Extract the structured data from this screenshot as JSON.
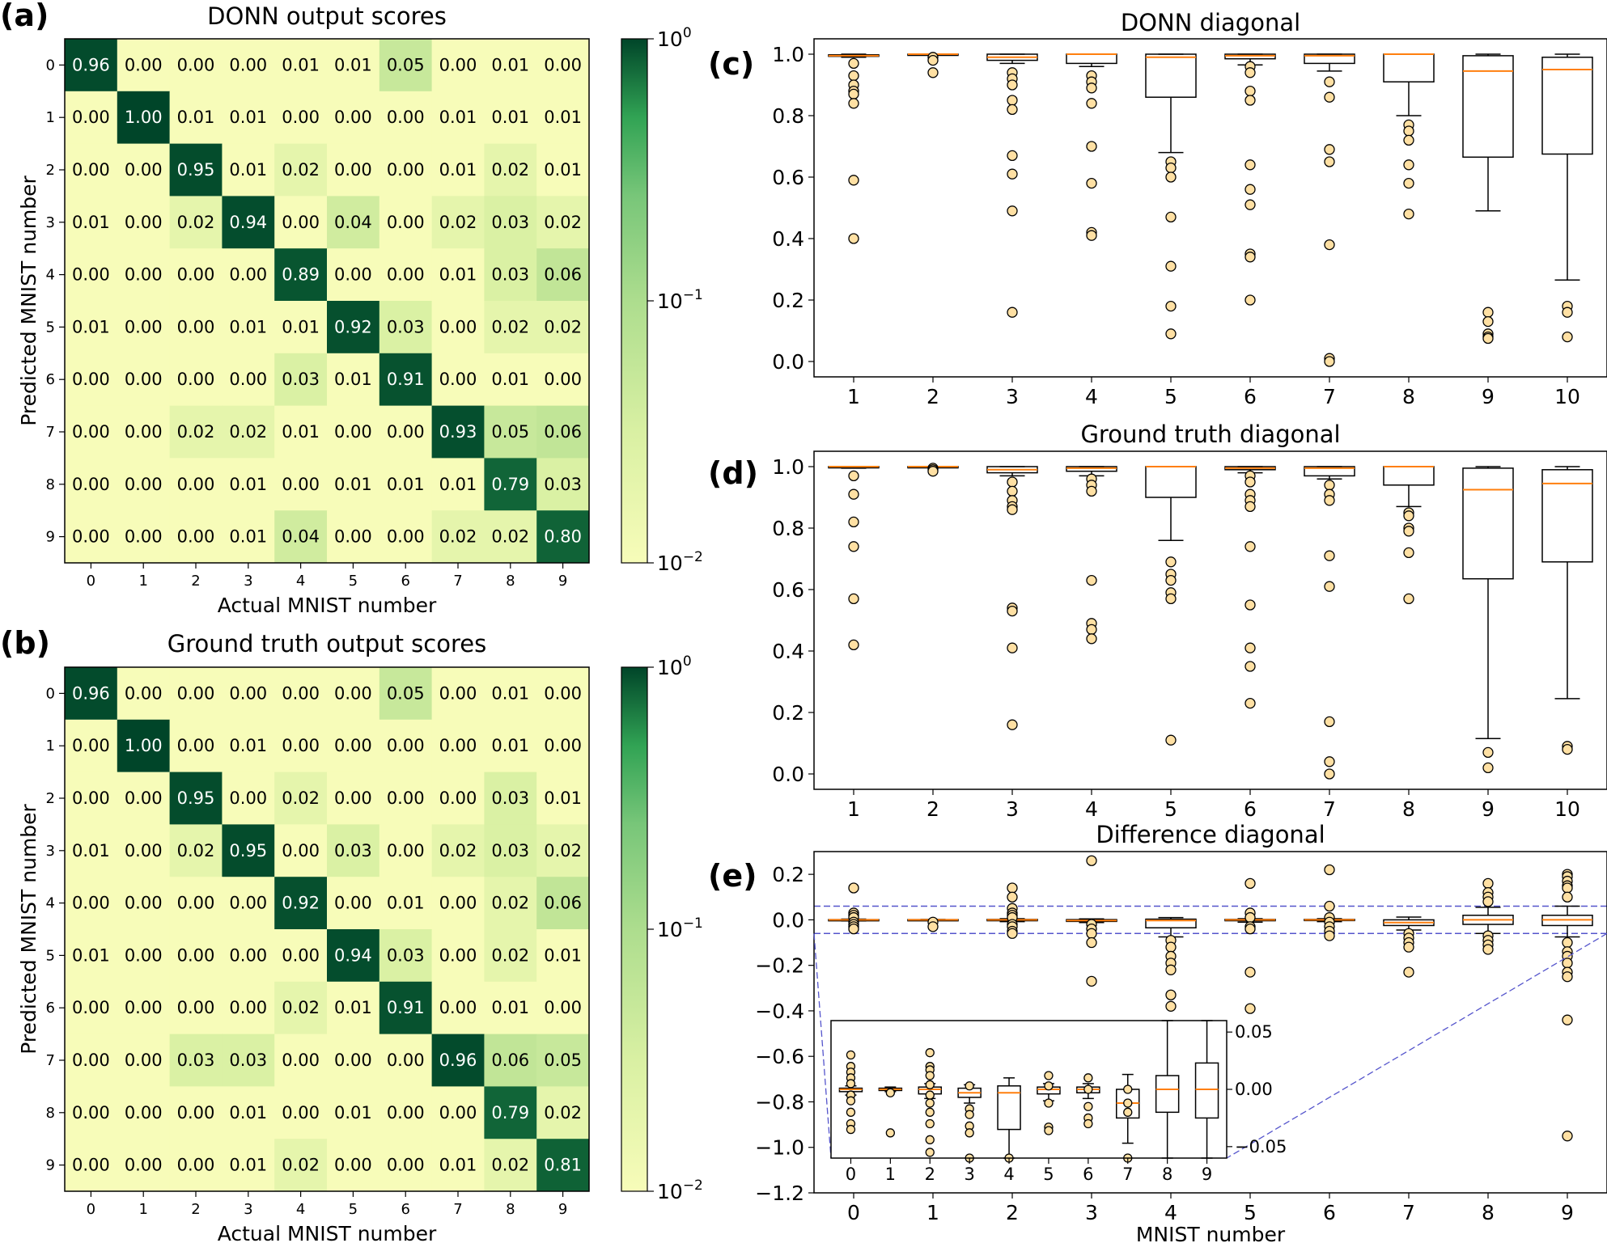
{
  "panels": {
    "a": "(a)",
    "b": "(b)",
    "c": "(c)",
    "d": "(d)",
    "e": "(e)"
  },
  "chart_data": [
    {
      "id": "a",
      "type": "heatmap",
      "title": "DONN output scores",
      "xlabel": "Actual MNIST number",
      "ylabel": "Predicted MNIST number",
      "x_ticks": [
        "0",
        "1",
        "2",
        "3",
        "4",
        "5",
        "6",
        "7",
        "8",
        "9"
      ],
      "y_ticks": [
        "0",
        "1",
        "2",
        "3",
        "4",
        "5",
        "6",
        "7",
        "8",
        "9"
      ],
      "colorbar": {
        "scale": "log",
        "range": [
          0.01,
          1
        ],
        "ticks": [
          {
            "base": "10",
            "exp": "0"
          },
          {
            "base": "10",
            "exp": "−1"
          },
          {
            "base": "10",
            "exp": "−2"
          }
        ],
        "colormap": "Greens"
      },
      "values": [
        [
          0.96,
          0.0,
          0.0,
          0.0,
          0.01,
          0.01,
          0.05,
          0.0,
          0.01,
          0.0
        ],
        [
          0.0,
          1.0,
          0.01,
          0.01,
          0.0,
          0.0,
          0.0,
          0.01,
          0.01,
          0.01
        ],
        [
          0.0,
          0.0,
          0.95,
          0.01,
          0.02,
          0.0,
          0.0,
          0.01,
          0.02,
          0.01
        ],
        [
          0.01,
          0.0,
          0.02,
          0.94,
          0.0,
          0.04,
          0.0,
          0.02,
          0.03,
          0.02
        ],
        [
          0.0,
          0.0,
          0.0,
          0.0,
          0.89,
          0.0,
          0.0,
          0.01,
          0.03,
          0.06
        ],
        [
          0.01,
          0.0,
          0.0,
          0.01,
          0.01,
          0.92,
          0.03,
          0.0,
          0.02,
          0.02
        ],
        [
          0.0,
          0.0,
          0.0,
          0.0,
          0.03,
          0.01,
          0.91,
          0.0,
          0.01,
          0.0
        ],
        [
          0.0,
          0.0,
          0.02,
          0.02,
          0.01,
          0.0,
          0.0,
          0.93,
          0.05,
          0.06
        ],
        [
          0.0,
          0.0,
          0.0,
          0.01,
          0.0,
          0.01,
          0.01,
          0.01,
          0.79,
          0.03
        ],
        [
          0.0,
          0.0,
          0.0,
          0.01,
          0.04,
          0.0,
          0.0,
          0.02,
          0.02,
          0.8
        ]
      ]
    },
    {
      "id": "b",
      "type": "heatmap",
      "title": "Ground truth output scores",
      "xlabel": "Actual MNIST number",
      "ylabel": "Predicted MNIST number",
      "x_ticks": [
        "0",
        "1",
        "2",
        "3",
        "4",
        "5",
        "6",
        "7",
        "8",
        "9"
      ],
      "y_ticks": [
        "0",
        "1",
        "2",
        "3",
        "4",
        "5",
        "6",
        "7",
        "8",
        "9"
      ],
      "colorbar": {
        "scale": "log",
        "range": [
          0.01,
          1
        ],
        "ticks": [
          {
            "base": "10",
            "exp": "0"
          },
          {
            "base": "10",
            "exp": "−1"
          },
          {
            "base": "10",
            "exp": "−2"
          }
        ],
        "colormap": "Greens"
      },
      "values": [
        [
          0.96,
          0.0,
          0.0,
          0.0,
          0.0,
          0.0,
          0.05,
          0.0,
          0.01,
          0.0
        ],
        [
          0.0,
          1.0,
          0.0,
          0.01,
          0.0,
          0.0,
          0.0,
          0.0,
          0.01,
          0.0
        ],
        [
          0.0,
          0.0,
          0.95,
          0.0,
          0.02,
          0.0,
          0.0,
          0.0,
          0.03,
          0.01
        ],
        [
          0.01,
          0.0,
          0.02,
          0.95,
          0.0,
          0.03,
          0.0,
          0.02,
          0.03,
          0.02
        ],
        [
          0.0,
          0.0,
          0.0,
          0.0,
          0.92,
          0.0,
          0.01,
          0.0,
          0.02,
          0.06
        ],
        [
          0.01,
          0.0,
          0.0,
          0.0,
          0.0,
          0.94,
          0.03,
          0.0,
          0.02,
          0.01
        ],
        [
          0.0,
          0.0,
          0.0,
          0.0,
          0.02,
          0.01,
          0.91,
          0.0,
          0.01,
          0.0
        ],
        [
          0.0,
          0.0,
          0.03,
          0.03,
          0.0,
          0.0,
          0.0,
          0.96,
          0.06,
          0.05
        ],
        [
          0.0,
          0.0,
          0.0,
          0.01,
          0.0,
          0.01,
          0.0,
          0.0,
          0.79,
          0.02
        ],
        [
          0.0,
          0.0,
          0.0,
          0.01,
          0.02,
          0.0,
          0.0,
          0.01,
          0.02,
          0.81
        ]
      ]
    },
    {
      "id": "c",
      "type": "box",
      "title": "DONN diagonal",
      "xlabel": "",
      "categories": [
        "1",
        "2",
        "3",
        "4",
        "5",
        "6",
        "7",
        "8",
        "9",
        "10"
      ],
      "ylim": [
        -0.05,
        1.05
      ],
      "yticks": [
        0.0,
        0.2,
        0.4,
        0.6,
        0.8,
        1.0
      ],
      "ytick_labels": [
        "0.0",
        "0.2",
        "0.4",
        "0.6",
        "0.8",
        "1.0"
      ],
      "boxes": [
        {
          "median": 0.995,
          "q1": 0.993,
          "q3": 0.998,
          "whislo": 0.99,
          "whishi": 1.0,
          "fliers": [
            0.97,
            0.93,
            0.9,
            0.88,
            0.87,
            0.84,
            0.59,
            0.4
          ]
        },
        {
          "median": 1.0,
          "q1": 0.999,
          "q3": 1.0,
          "whislo": 0.998,
          "whishi": 1.0,
          "fliers": [
            0.99,
            0.98,
            0.94
          ]
        },
        {
          "median": 0.99,
          "q1": 0.98,
          "q3": 1.0,
          "whislo": 0.97,
          "whishi": 1.0,
          "fliers": [
            0.94,
            0.92,
            0.9,
            0.85,
            0.82,
            0.67,
            0.61,
            0.49,
            0.16
          ]
        },
        {
          "median": 1.0,
          "q1": 0.97,
          "q3": 1.0,
          "whislo": 0.96,
          "whishi": 1.0,
          "fliers": [
            0.93,
            0.91,
            0.89,
            0.84,
            0.7,
            0.58,
            0.42,
            0.41
          ]
        },
        {
          "median": 0.99,
          "q1": 0.86,
          "q3": 1.0,
          "whislo": 0.68,
          "whishi": 1.0,
          "fliers": [
            0.65,
            0.63,
            0.6,
            0.47,
            0.31,
            0.18,
            0.09
          ]
        },
        {
          "median": 0.995,
          "q1": 0.985,
          "q3": 1.0,
          "whislo": 0.965,
          "whishi": 1.0,
          "fliers": [
            0.96,
            0.94,
            0.88,
            0.85,
            0.64,
            0.56,
            0.51,
            0.35,
            0.34,
            0.2
          ]
        },
        {
          "median": 0.995,
          "q1": 0.97,
          "q3": 1.0,
          "whislo": 0.945,
          "whishi": 1.0,
          "fliers": [
            0.91,
            0.86,
            0.69,
            0.65,
            0.38,
            0.01,
            0.0
          ]
        },
        {
          "median": 1.0,
          "q1": 0.91,
          "q3": 1.0,
          "whislo": 0.8,
          "whishi": 1.0,
          "fliers": [
            0.77,
            0.75,
            0.72,
            0.64,
            0.58,
            0.48
          ]
        },
        {
          "median": 0.945,
          "q1": 0.665,
          "q3": 0.995,
          "whislo": 0.49,
          "whishi": 1.0,
          "fliers": [
            0.16,
            0.13,
            0.09,
            0.08,
            0.075
          ]
        },
        {
          "median": 0.95,
          "q1": 0.675,
          "q3": 0.99,
          "whislo": 0.265,
          "whishi": 1.0,
          "fliers": [
            0.18,
            0.16,
            0.08
          ]
        }
      ]
    },
    {
      "id": "d",
      "type": "box",
      "title": "Ground truth diagonal",
      "xlabel": "",
      "categories": [
        "1",
        "2",
        "3",
        "4",
        "5",
        "6",
        "7",
        "8",
        "9",
        "10"
      ],
      "ylim": [
        -0.05,
        1.05
      ],
      "yticks": [
        0.0,
        0.2,
        0.4,
        0.6,
        0.8,
        1.0
      ],
      "ytick_labels": [
        "0.0",
        "0.2",
        "0.4",
        "0.6",
        "0.8",
        "1.0"
      ],
      "boxes": [
        {
          "median": 1.0,
          "q1": 0.998,
          "q3": 1.0,
          "whislo": 0.995,
          "whishi": 1.0,
          "fliers": [
            0.97,
            0.91,
            0.82,
            0.74,
            0.57,
            0.42
          ]
        },
        {
          "median": 1.0,
          "q1": 0.999,
          "q3": 1.0,
          "whislo": 0.998,
          "whishi": 1.0,
          "fliers": [
            0.995,
            0.99,
            0.985
          ]
        },
        {
          "median": 0.99,
          "q1": 0.98,
          "q3": 1.0,
          "whislo": 0.97,
          "whishi": 1.0,
          "fliers": [
            0.95,
            0.92,
            0.89,
            0.87,
            0.86,
            0.54,
            0.53,
            0.41,
            0.16
          ]
        },
        {
          "median": 0.995,
          "q1": 0.985,
          "q3": 1.0,
          "whislo": 0.97,
          "whishi": 1.0,
          "fliers": [
            0.96,
            0.94,
            0.92,
            0.63,
            0.49,
            0.47,
            0.44
          ]
        },
        {
          "median": 1.0,
          "q1": 0.9,
          "q3": 1.0,
          "whislo": 0.76,
          "whishi": 1.0,
          "fliers": [
            0.69,
            0.65,
            0.63,
            0.59,
            0.57,
            0.11
          ]
        },
        {
          "median": 0.995,
          "q1": 0.99,
          "q3": 1.0,
          "whislo": 0.98,
          "whishi": 1.0,
          "fliers": [
            0.97,
            0.95,
            0.91,
            0.89,
            0.87,
            0.74,
            0.55,
            0.41,
            0.35,
            0.23
          ]
        },
        {
          "median": 0.995,
          "q1": 0.97,
          "q3": 1.0,
          "whislo": 0.96,
          "whishi": 1.0,
          "fliers": [
            0.94,
            0.91,
            0.89,
            0.71,
            0.61,
            0.17,
            0.04,
            0.0
          ]
        },
        {
          "median": 1.0,
          "q1": 0.94,
          "q3": 1.0,
          "whislo": 0.87,
          "whishi": 1.0,
          "fliers": [
            0.85,
            0.84,
            0.8,
            0.79,
            0.72,
            0.57
          ]
        },
        {
          "median": 0.925,
          "q1": 0.635,
          "q3": 0.995,
          "whislo": 0.115,
          "whishi": 1.0,
          "fliers": [
            0.07,
            0.02
          ]
        },
        {
          "median": 0.945,
          "q1": 0.69,
          "q3": 0.99,
          "whislo": 0.245,
          "whishi": 1.0,
          "fliers": [
            0.09,
            0.08
          ]
        }
      ]
    },
    {
      "id": "e",
      "type": "box",
      "title": "Difference diagonal",
      "xlabel": "MNIST number",
      "categories": [
        "0",
        "1",
        "2",
        "3",
        "4",
        "5",
        "6",
        "7",
        "8",
        "9"
      ],
      "ylim": [
        -1.2,
        0.3
      ],
      "yticks": [
        -1.2,
        -1.0,
        -0.8,
        -0.6,
        -0.4,
        -0.2,
        0.0,
        0.2
      ],
      "ytick_labels": [
        "−1.2",
        "−1.0",
        "−0.8",
        "−0.6",
        "−0.4",
        "−0.2",
        "0.0",
        "0.2"
      ],
      "band": [
        -0.06,
        0.06
      ],
      "boxes": [
        {
          "median": 0.0,
          "q1": -0.002,
          "q3": 0.001,
          "whislo": -0.005,
          "whishi": 0.003,
          "fliers": [
            0.14,
            0.03,
            0.02,
            0.01,
            -0.01,
            -0.02,
            -0.03,
            -0.04
          ]
        },
        {
          "median": 0.0,
          "q1": -0.001,
          "q3": 0.001,
          "whislo": -0.002,
          "whishi": 0.002,
          "fliers": [
            -0.01,
            -0.03
          ]
        },
        {
          "median": 0.0,
          "q1": -0.004,
          "q3": 0.002,
          "whislo": -0.008,
          "whishi": 0.005,
          "fliers": [
            0.14,
            0.1,
            0.05,
            0.03,
            0.02,
            0.01,
            -0.02,
            -0.03,
            -0.05,
            -0.06
          ]
        },
        {
          "median": -0.003,
          "q1": -0.007,
          "q3": 0.001,
          "whislo": -0.012,
          "whishi": 0.004,
          "fliers": [
            0.26,
            -0.02,
            -0.04,
            -0.06,
            -0.1,
            -0.27
          ]
        },
        {
          "median": -0.003,
          "q1": -0.035,
          "q3": 0.003,
          "whislo": -0.075,
          "whishi": 0.01,
          "fliers": [
            -0.09,
            -0.12,
            -0.16,
            -0.19,
            -0.22,
            -0.33,
            -0.38
          ]
        },
        {
          "median": 0.0,
          "q1": -0.004,
          "q3": 0.002,
          "whislo": -0.01,
          "whishi": 0.005,
          "fliers": [
            0.16,
            0.03,
            0.01,
            -0.03,
            -0.04,
            -0.23,
            -0.39
          ]
        },
        {
          "median": 0.0,
          "q1": -0.003,
          "q3": 0.002,
          "whislo": -0.008,
          "whishi": 0.005,
          "fliers": [
            0.22,
            0.06,
            0.01,
            -0.01,
            -0.03,
            -0.05,
            -0.07
          ]
        },
        {
          "median": -0.012,
          "q1": -0.025,
          "q3": 0.0,
          "whislo": -0.045,
          "whishi": 0.012,
          "fliers": [
            -0.06,
            -0.08,
            -0.1,
            -0.12,
            -0.23
          ]
        },
        {
          "median": 0.0,
          "q1": -0.02,
          "q3": 0.02,
          "whislo": -0.06,
          "whishi": 0.055,
          "fliers": [
            0.16,
            0.12,
            0.1,
            0.08,
            -0.07,
            -0.09,
            -0.11,
            -0.13
          ]
        },
        {
          "median": 0.0,
          "q1": -0.025,
          "q3": 0.02,
          "whislo": -0.075,
          "whishi": 0.06,
          "fliers": [
            0.2,
            0.19,
            0.17,
            0.15,
            0.14,
            0.1,
            -0.1,
            -0.14,
            -0.16,
            -0.19,
            -0.23,
            -0.25,
            -0.44,
            -0.95
          ]
        }
      ],
      "inset": {
        "categories": [
          "0",
          "1",
          "2",
          "3",
          "4",
          "5",
          "6",
          "7",
          "8",
          "9"
        ],
        "ylim": [
          -0.06,
          0.06
        ],
        "yticks": [
          0.05,
          0.0,
          -0.05
        ],
        "ytick_labels": [
          "0.05",
          "0.00",
          "−0.05"
        ],
        "boxes": [
          {
            "median": 0.0,
            "q1": -0.002,
            "q3": 0.001,
            "whislo": -0.005,
            "whishi": 0.003,
            "fliers": [
              0.03,
              0.02,
              0.015,
              0.01,
              0.005,
              -0.005,
              -0.01,
              -0.02,
              -0.03,
              -0.035
            ]
          },
          {
            "median": 0.0,
            "q1": -0.001,
            "q3": 0.001,
            "whislo": -0.002,
            "whishi": 0.002,
            "fliers": [
              -0.003,
              -0.038
            ]
          },
          {
            "median": 0.0,
            "q1": -0.004,
            "q3": 0.002,
            "whislo": -0.008,
            "whishi": 0.005,
            "fliers": [
              0.032,
              0.02,
              0.017,
              0.012,
              0.004,
              -0.005,
              -0.012,
              -0.02,
              -0.03,
              -0.044,
              -0.055
            ]
          },
          {
            "median": -0.003,
            "q1": -0.007,
            "q3": 0.001,
            "whislo": -0.012,
            "whishi": 0.004,
            "fliers": [
              0.003,
              -0.017,
              -0.022,
              -0.032,
              -0.038,
              -0.06
            ]
          },
          {
            "median": -0.003,
            "q1": -0.035,
            "q3": 0.003,
            "whislo": -0.06,
            "whishi": 0.01,
            "fliers": [
              -0.06
            ]
          },
          {
            "median": 0.0,
            "q1": -0.004,
            "q3": 0.002,
            "whislo": -0.01,
            "whishi": 0.005,
            "fliers": [
              0.012,
              0.003,
              -0.012,
              -0.033,
              -0.036
            ]
          },
          {
            "median": 0.0,
            "q1": -0.003,
            "q3": 0.002,
            "whislo": -0.008,
            "whishi": 0.005,
            "fliers": [
              0.01,
              0.0,
              -0.015,
              -0.025,
              -0.03
            ]
          },
          {
            "median": -0.012,
            "q1": -0.025,
            "q3": 0.0,
            "whislo": -0.047,
            "whishi": 0.013,
            "fliers": [
              0.0,
              -0.012,
              -0.02,
              -0.06
            ]
          },
          {
            "median": 0.0,
            "q1": -0.02,
            "q3": 0.012,
            "whislo": -0.06,
            "whishi": 0.06,
            "fliers": []
          },
          {
            "median": 0.0,
            "q1": -0.025,
            "q3": 0.023,
            "whislo": -0.06,
            "whishi": 0.06,
            "fliers": []
          }
        ]
      }
    }
  ]
}
